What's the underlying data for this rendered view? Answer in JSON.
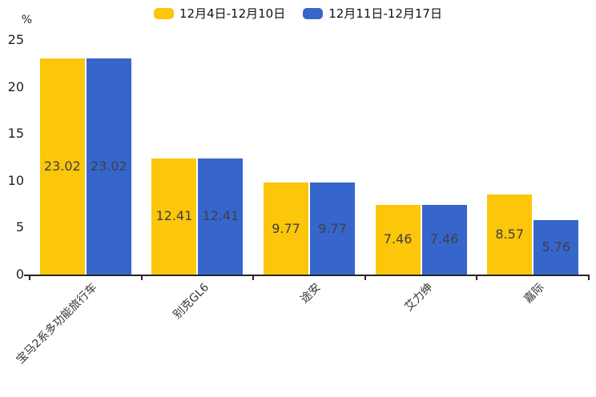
{
  "chart_data": {
    "type": "bar",
    "title": "",
    "categories": [
      "宝马2系多功能旅行车",
      "别克GL6",
      "途安",
      "艾力绅",
      "嘉际"
    ],
    "series": [
      {
        "name": "12月4日-12月10日",
        "color": "#FCC60A",
        "values": [
          23.02,
          12.41,
          9.77,
          7.46,
          8.57
        ]
      },
      {
        "name": "12月11日-12月17日",
        "color": "#3666CC",
        "values": [
          23.02,
          12.41,
          9.77,
          7.46,
          5.76
        ]
      }
    ],
    "xlabel": "",
    "ylabel": "%",
    "ylim": [
      0,
      25
    ],
    "yticks": [
      0,
      5,
      10,
      15,
      20,
      25
    ],
    "legend_position": "top-center",
    "grid": false,
    "value_labels": "inside-center",
    "xlabel_rotation_deg": 45
  }
}
